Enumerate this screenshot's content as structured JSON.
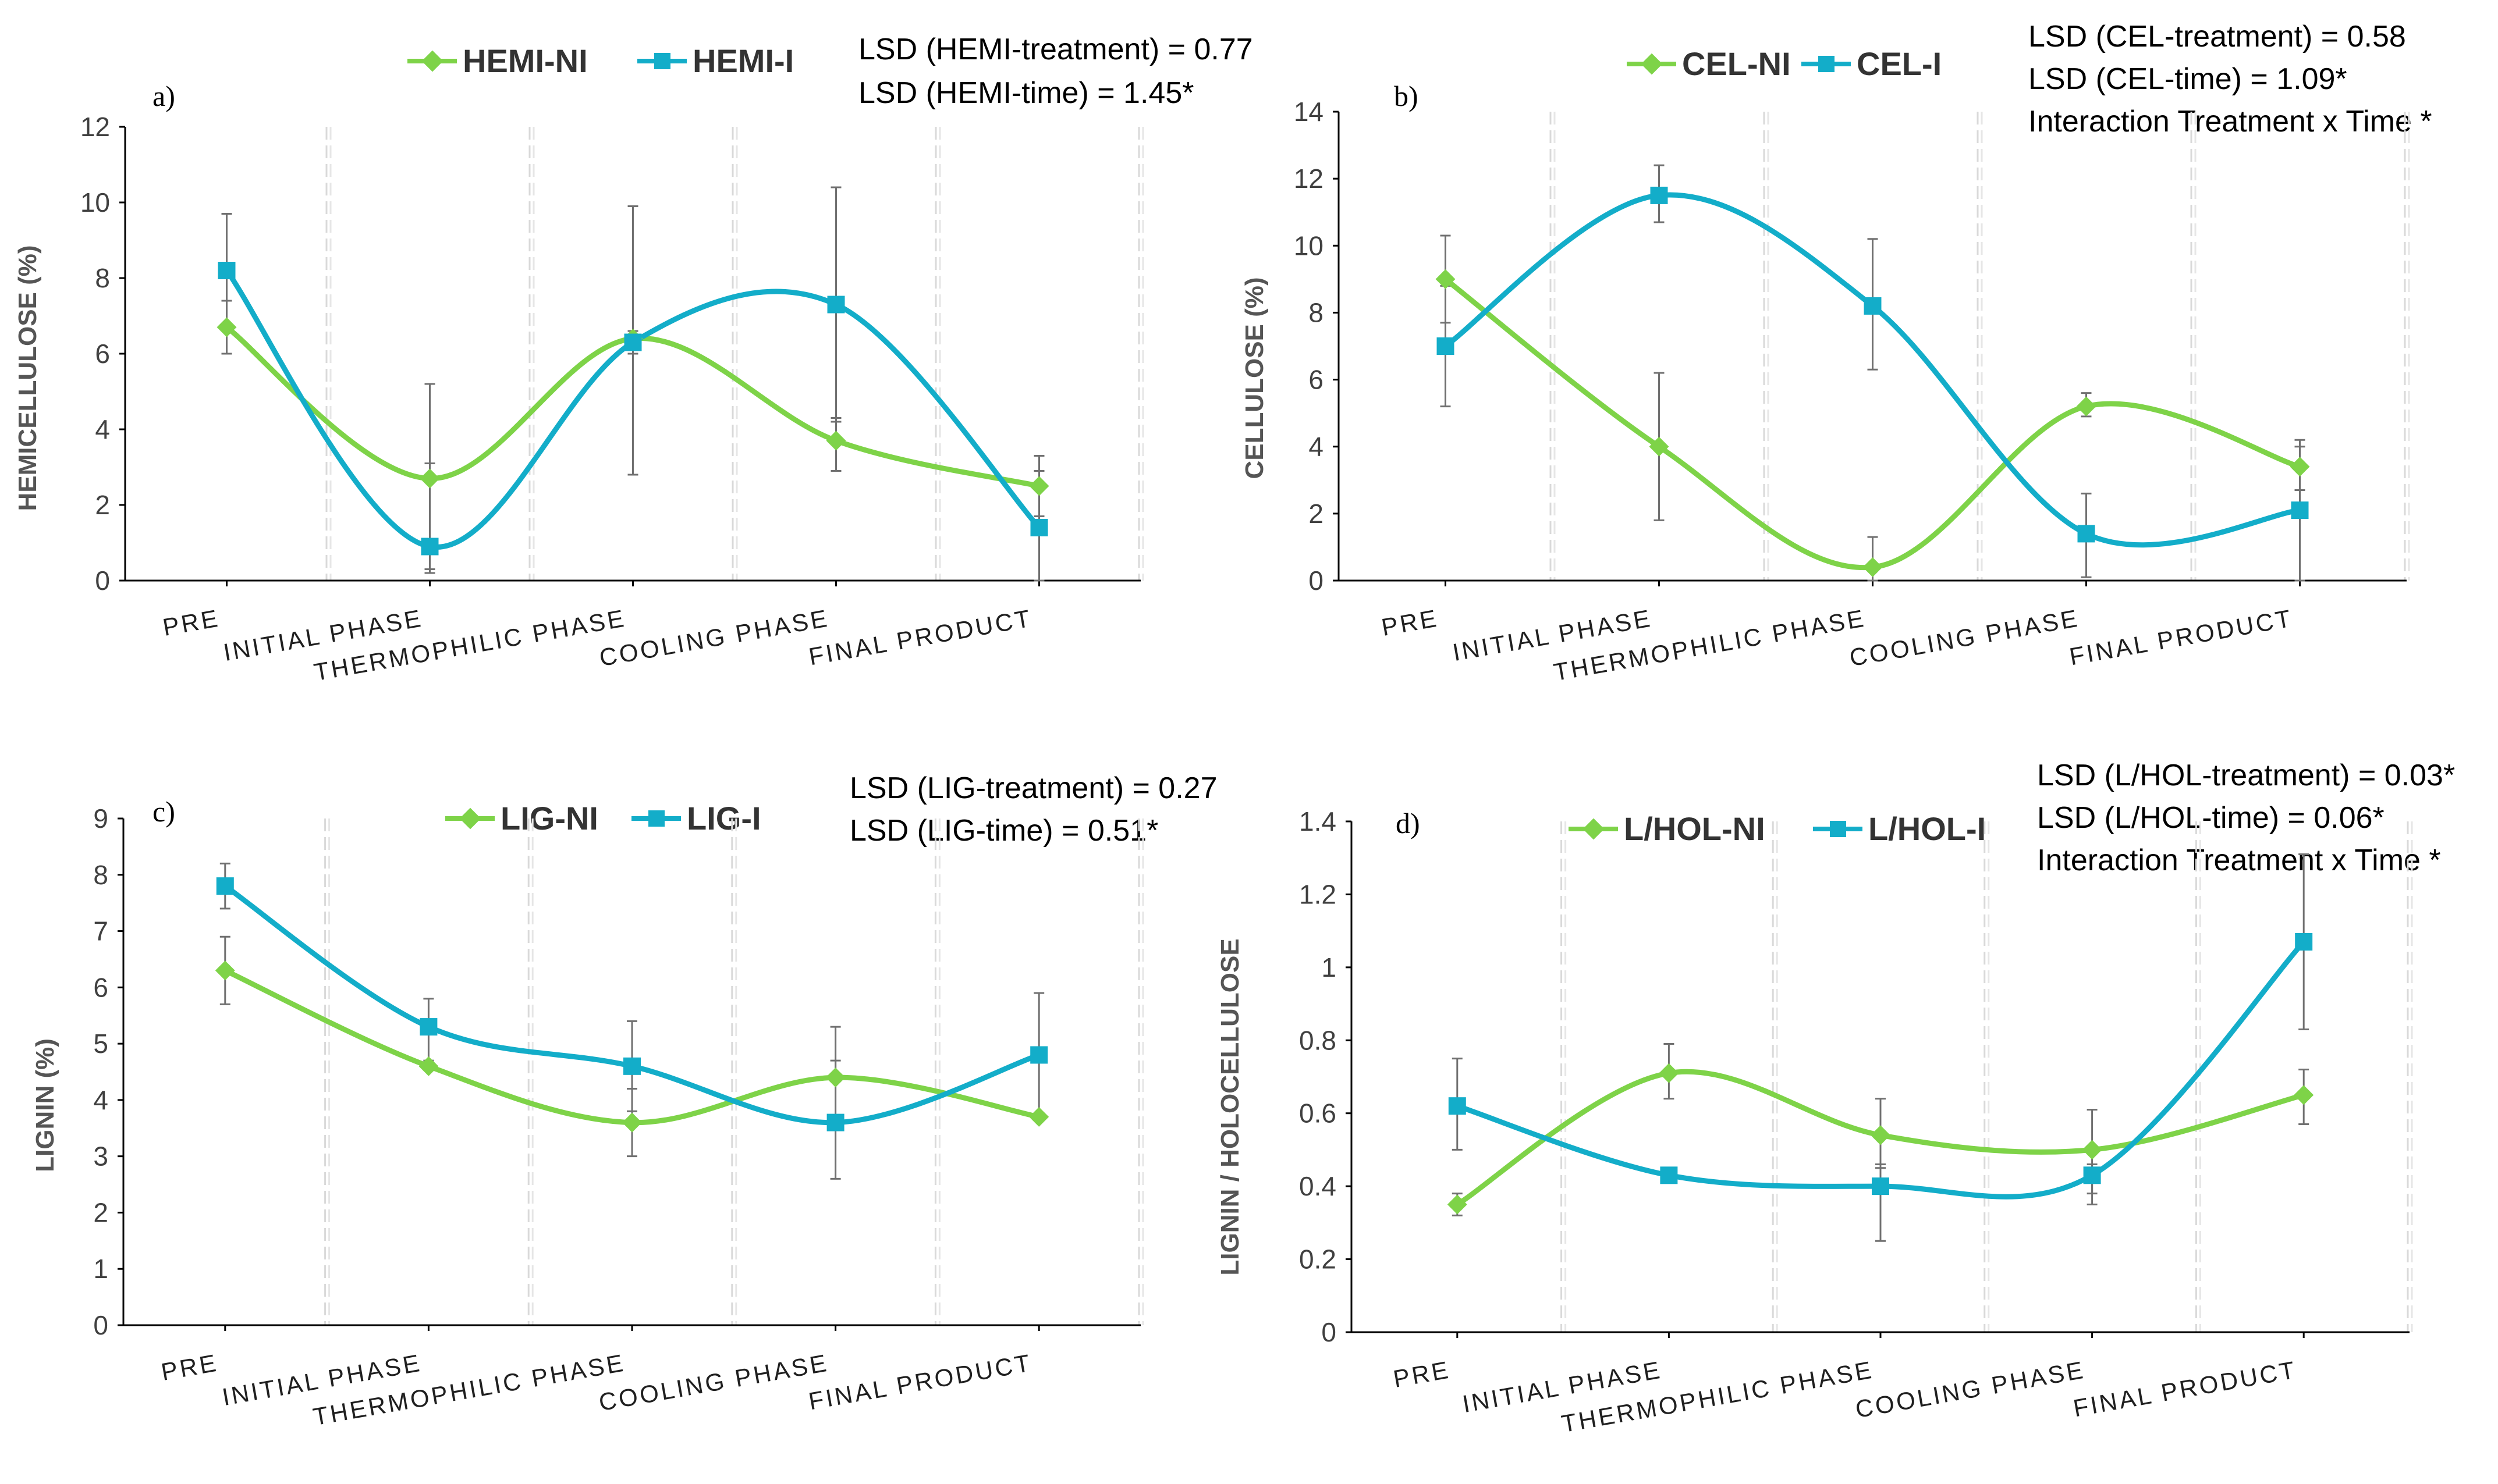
{
  "chart_data": [
    {
      "id": "a",
      "type": "line",
      "panel_label": "a)",
      "title": "",
      "ylabel": "HEMICELLULOSE (%)",
      "xlabel": "",
      "ylim": [
        0,
        12
      ],
      "yticks": [
        "0",
        "2",
        "4",
        "6",
        "8",
        "10",
        "12"
      ],
      "categories": [
        "PRE",
        "INITIAL PHASE",
        "THERMOPHILIC PHASE",
        "COOLING PHASE",
        "FINAL PRODUCT"
      ],
      "series": [
        {
          "name": "HEMI-NI",
          "color": "#7ed348",
          "marker": "diamond",
          "values": [
            6.7,
            2.7,
            6.4,
            3.7,
            2.5
          ],
          "err_low": [
            6.0,
            0.2,
            2.8,
            2.9,
            1.7
          ],
          "err_high": [
            7.4,
            5.2,
            9.9,
            4.3,
            3.3
          ]
        },
        {
          "name": "HEMI-I",
          "color": "#13adc9",
          "marker": "square",
          "values": [
            8.2,
            0.9,
            6.3,
            7.3,
            1.4
          ],
          "err_low": [
            6.6,
            0.3,
            6.0,
            4.2,
            0.0
          ],
          "err_high": [
            9.7,
            3.1,
            6.6,
            10.4,
            2.9
          ]
        }
      ],
      "legend": "top",
      "annotations": [
        "LSD (HEMI-treatment) = 0.77",
        "LSD (HEMI-time) = 1.45*"
      ]
    },
    {
      "id": "b",
      "type": "line",
      "panel_label": "b)",
      "title": "",
      "ylabel": "CELLULOSE (%)",
      "xlabel": "",
      "ylim": [
        0,
        14
      ],
      "yticks": [
        "0",
        "2",
        "4",
        "6",
        "8",
        "10",
        "12",
        "14"
      ],
      "categories": [
        "PRE",
        "INITIAL PHASE",
        "THERMOPHILIC PHASE",
        "COOLING PHASE",
        "FINAL PRODUCT"
      ],
      "series": [
        {
          "name": "CEL-NI",
          "color": "#7ed348",
          "marker": "diamond",
          "values": [
            9.0,
            4.0,
            0.4,
            5.2,
            3.4
          ],
          "err_low": [
            7.7,
            1.8,
            0.0,
            4.9,
            2.7
          ],
          "err_high": [
            10.3,
            6.2,
            1.3,
            5.6,
            4.2
          ]
        },
        {
          "name": "CEL-I",
          "color": "#13adc9",
          "marker": "square",
          "values": [
            7.0,
            11.5,
            8.2,
            1.4,
            2.1
          ],
          "err_low": [
            5.2,
            10.7,
            6.3,
            0.1,
            0.0
          ],
          "err_high": [
            8.8,
            12.4,
            10.2,
            2.6,
            4.0
          ]
        }
      ],
      "legend": "top",
      "annotations": [
        "LSD (CEL-treatment) = 0.58",
        "LSD (CEL-time) = 1.09*",
        "Interaction Treatment x Time *"
      ]
    },
    {
      "id": "c",
      "type": "line",
      "panel_label": "c)",
      "title": "",
      "ylabel": "LIGNIN (%)",
      "xlabel": "",
      "ylim": [
        0,
        9
      ],
      "yticks": [
        "0",
        "1",
        "2",
        "3",
        "4",
        "5",
        "6",
        "7",
        "8",
        "9"
      ],
      "categories": [
        "PRE",
        "INITIAL PHASE",
        "THERMOPHILIC PHASE",
        "COOLING PHASE",
        "FINAL PRODUCT"
      ],
      "series": [
        {
          "name": "LIG-NI",
          "color": "#7ed348",
          "marker": "diamond",
          "values": [
            6.3,
            4.6,
            3.6,
            4.4,
            3.7
          ],
          "err_low": [
            5.7,
            4.6,
            3.0,
            4.4,
            3.7
          ],
          "err_high": [
            6.9,
            4.6,
            4.2,
            4.7,
            3.7
          ]
        },
        {
          "name": "LIG-I",
          "color": "#13adc9",
          "marker": "square",
          "values": [
            7.8,
            5.3,
            4.6,
            3.6,
            4.8
          ],
          "err_low": [
            7.4,
            4.7,
            3.8,
            2.6,
            3.7
          ],
          "err_high": [
            8.2,
            5.8,
            5.4,
            5.3,
            5.9
          ]
        }
      ],
      "legend": "top",
      "annotations": [
        "LSD (LIG-treatment) = 0.27",
        "LSD (LIG-time) = 0.51*"
      ]
    },
    {
      "id": "d",
      "type": "line",
      "panel_label": "d)",
      "title": "",
      "ylabel": "LIGNIN / HOLOCELLULOSE",
      "xlabel": "",
      "ylim": [
        0,
        1.4
      ],
      "yticks": [
        "0",
        "0.2",
        "0.4",
        "0.6",
        "0.8",
        "1",
        "1.2",
        "1.4"
      ],
      "categories": [
        "PRE",
        "INITIAL PHASE",
        "THERMOPHILIC PHASE",
        "COOLING PHASE",
        "FINAL PRODUCT"
      ],
      "series": [
        {
          "name": "L/HOL-NI",
          "color": "#7ed348",
          "marker": "diamond",
          "values": [
            0.35,
            0.71,
            0.54,
            0.5,
            0.65
          ],
          "err_low": [
            0.32,
            0.64,
            0.45,
            0.38,
            0.57
          ],
          "err_high": [
            0.38,
            0.79,
            0.64,
            0.61,
            0.72
          ]
        },
        {
          "name": "L/HOL-I",
          "color": "#13adc9",
          "marker": "square",
          "values": [
            0.62,
            0.43,
            0.4,
            0.43,
            1.07
          ],
          "err_low": [
            0.5,
            0.43,
            0.25,
            0.35,
            0.83
          ],
          "err_high": [
            0.75,
            0.43,
            0.46,
            0.46,
            1.31
          ]
        }
      ],
      "legend": "top",
      "annotations": [
        "LSD (L/HOL-treatment) = 0.03*",
        "LSD (L/HOL-time) = 0.06*",
        "Interaction Treatment x Time *"
      ]
    }
  ]
}
